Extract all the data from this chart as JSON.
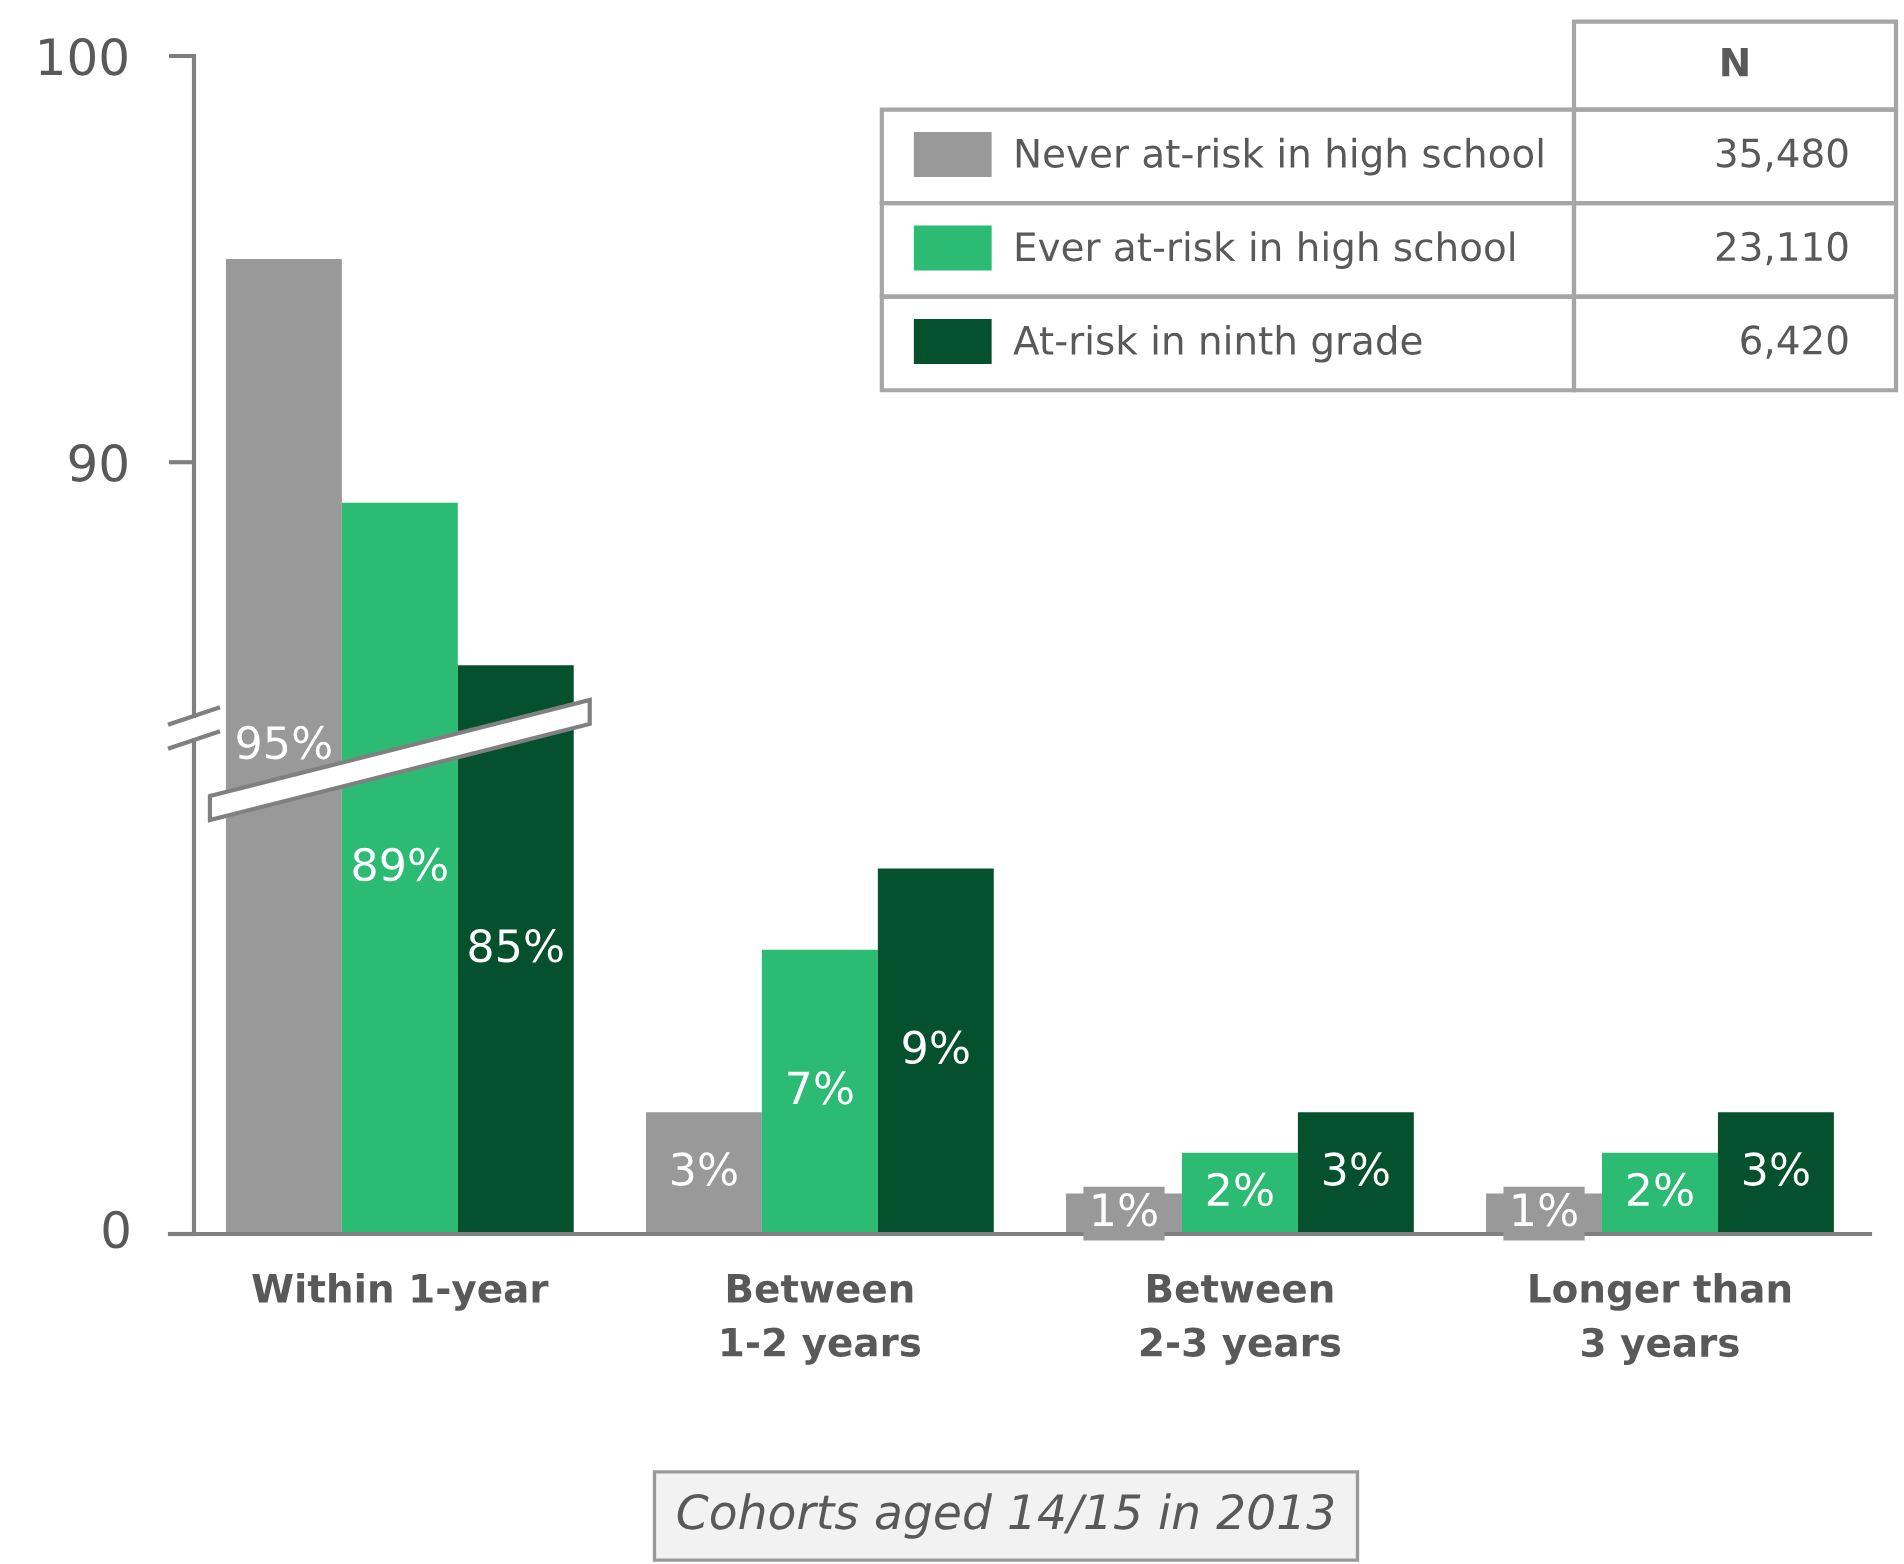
{
  "chart_data": [
    {
      "type": "bar",
      "categories": [
        null,
        null,
        null,
        null
      ],
      "series": [
        {
          "name": "Never at-risk in high school",
          "color": "#999999",
          "values": [
            95,
            null,
            null,
            null
          ],
          "value_labels": [
            "95%",
            null,
            null,
            null
          ]
        },
        {
          "name": "Ever at-risk in high school",
          "color": "#2bbb73",
          "values": [
            89,
            null,
            null,
            null
          ],
          "value_labels": [
            "89%",
            null,
            null,
            null
          ]
        },
        {
          "name": "At-risk in ninth grade",
          "color": "#05502d",
          "values": [
            85,
            null,
            null,
            null
          ],
          "value_labels": [
            "85%",
            null,
            null,
            null
          ]
        }
      ],
      "ylim": [
        71,
        100
      ],
      "yticks": [
        90,
        100
      ],
      "tick_labels": "y",
      "legend": "top right",
      "legend_title": "N",
      "annotations": [
        "35,480",
        "23,110",
        "6,420"
      ]
    },
    {
      "type": "bar",
      "categories": [
        "Within 1-year",
        "Between\n1-2 years",
        "Between\n2-3 years",
        "Longer than\n3 years"
      ],
      "series": [
        {
          "color": "#999999",
          "values": [
            null,
            3,
            1,
            1
          ],
          "value_labels": [
            null,
            "3%",
            "1%",
            "1%"
          ]
        },
        {
          "color": "#2bbb73",
          "values": [
            null,
            7,
            2,
            2
          ],
          "value_labels": [
            null,
            "7%",
            "2%",
            "2%"
          ]
        },
        {
          "color": "#05502d",
          "values": [
            null,
            9,
            3,
            3
          ],
          "value_labels": [
            null,
            "9%",
            "3%",
            "3%"
          ]
        }
      ],
      "tick_labels": "x",
      "annotations": [
        "0",
        "Cohorts aged 14/15 in 2013"
      ]
    }
  ]
}
